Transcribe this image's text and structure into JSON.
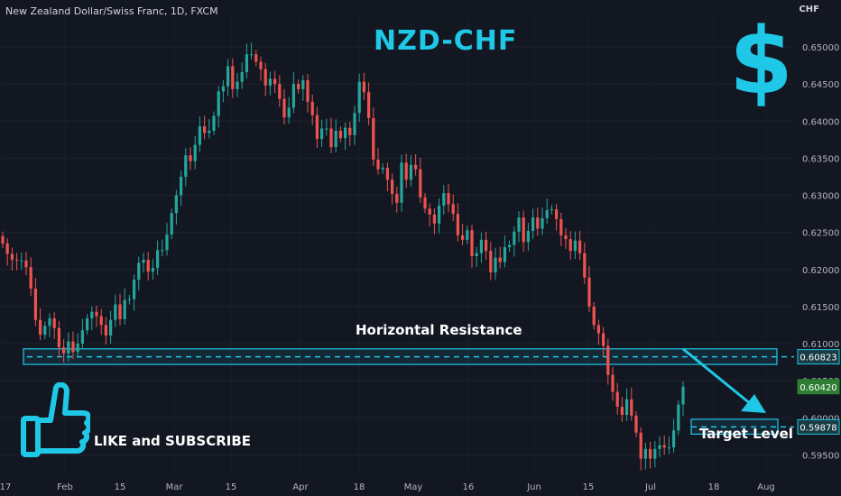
{
  "header": {
    "symbol_line": "New Zealand Dollar/Swiss Franc, 1D, FXCM",
    "currency": "CHF"
  },
  "overlay": {
    "title": "NZD-CHF",
    "dollar_glyph": "$",
    "like_text": "LIKE and SUBSCRIBE",
    "resistance_label": "Horizontal Resistance",
    "target_label": "Target Level"
  },
  "colors": {
    "up": "#26a69a",
    "down": "#ef5350",
    "accent": "#1ec8e6",
    "background": "#131722"
  },
  "chart_data": {
    "type": "candlestick",
    "symbol": "NZD/CHF",
    "timeframe": "1D",
    "x_ticks": [
      "17",
      "Feb",
      "15",
      "Mar",
      "15",
      "Apr",
      "18",
      "May",
      "16",
      "Jun",
      "15",
      "Jul",
      "18",
      "Aug"
    ],
    "y_ticks": [
      "0.65000",
      "0.64500",
      "0.64000",
      "0.63500",
      "0.63000",
      "0.62500",
      "0.62000",
      "0.61500",
      "0.61000",
      "0.60500",
      "0.60000",
      "0.59500"
    ],
    "ylim": [
      0.5925,
      0.6545
    ],
    "price_labels": [
      {
        "value": 0.60823,
        "text": "0.60823",
        "style": "resistance"
      },
      {
        "value": 0.6042,
        "text": "0.60420",
        "style": "last"
      },
      {
        "value": 0.59878,
        "text": "0.59878",
        "style": "target"
      }
    ],
    "resistance_zone": {
      "low": 0.6072,
      "high": 0.6093,
      "level": 0.60823
    },
    "target_zone": {
      "low": 0.5978,
      "high": 0.5998,
      "level": 0.59878
    },
    "closes": [
      0.6235,
      0.6221,
      0.6213,
      0.6212,
      0.6212,
      0.6203,
      0.6174,
      0.6132,
      0.6112,
      0.6124,
      0.6134,
      0.6121,
      0.6095,
      0.6087,
      0.6103,
      0.6089,
      0.61,
      0.6118,
      0.6134,
      0.6143,
      0.6137,
      0.6125,
      0.6111,
      0.6132,
      0.6153,
      0.6133,
      0.6159,
      0.616,
      0.6186,
      0.6209,
      0.6213,
      0.6197,
      0.6202,
      0.6226,
      0.6226,
      0.6247,
      0.6276,
      0.63,
      0.6325,
      0.6354,
      0.6346,
      0.6368,
      0.6393,
      0.6384,
      0.6387,
      0.6407,
      0.644,
      0.6447,
      0.6474,
      0.6443,
      0.6453,
      0.6466,
      0.649,
      0.649,
      0.648,
      0.647,
      0.6448,
      0.6457,
      0.645,
      0.643,
      0.6405,
      0.6418,
      0.645,
      0.6443,
      0.6455,
      0.6426,
      0.6408,
      0.6376,
      0.639,
      0.639,
      0.6365,
      0.6387,
      0.6377,
      0.6391,
      0.6381,
      0.6411,
      0.6453,
      0.6439,
      0.6404,
      0.6348,
      0.6335,
      0.6337,
      0.6321,
      0.6302,
      0.629,
      0.6344,
      0.6321,
      0.6341,
      0.6335,
      0.6297,
      0.6282,
      0.6274,
      0.6262,
      0.6286,
      0.6303,
      0.6288,
      0.6275,
      0.6246,
      0.624,
      0.6253,
      0.6218,
      0.6222,
      0.624,
      0.6225,
      0.6196,
      0.6216,
      0.621,
      0.623,
      0.6233,
      0.6251,
      0.627,
      0.6237,
      0.6252,
      0.627,
      0.6255,
      0.6269,
      0.628,
      0.6281,
      0.6268,
      0.6246,
      0.6241,
      0.6225,
      0.6239,
      0.6222,
      0.6189,
      0.615,
      0.6125,
      0.6114,
      0.6097,
      0.6058,
      0.6035,
      0.6015,
      0.6004,
      0.6025,
      0.6003,
      0.598,
      0.5945,
      0.5958,
      0.5945,
      0.5958,
      0.5963,
      0.596,
      0.596,
      0.5983,
      0.6018,
      0.6042
    ]
  }
}
